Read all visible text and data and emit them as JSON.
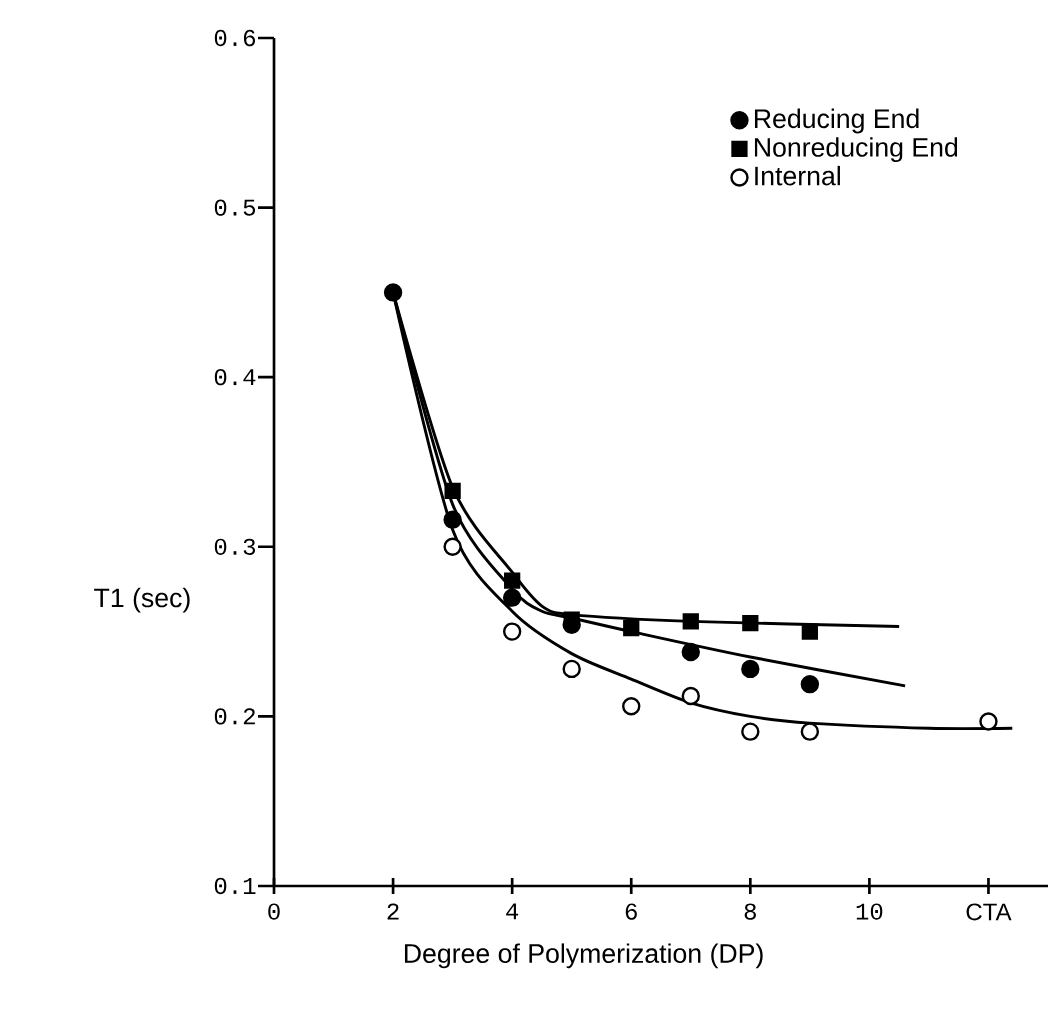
{
  "chart_data": {
    "type": "scatter",
    "xlabel": "Degree of Polymerization (DP)",
    "ylabel": "T1 (sec)",
    "xlim": [
      0,
      13
    ],
    "ylim": [
      0.1,
      0.6
    ],
    "xticks": [
      0,
      2,
      4,
      6,
      8,
      10,
      {
        "value": 12,
        "label": "CTA"
      }
    ],
    "yticks": [
      0.1,
      0.2,
      0.3,
      0.4,
      0.5,
      0.6
    ],
    "grid": false,
    "legend": "top right",
    "series": [
      {
        "name": "Reducing End",
        "marker": "circle",
        "color": "#000000",
        "x": [
          2,
          3,
          4,
          5,
          6,
          7,
          8,
          9
        ],
        "values": [
          0.45,
          0.316,
          0.27,
          0.254,
          null,
          0.238,
          0.228,
          0.219
        ]
      },
      {
        "name": "Nonreducing End",
        "marker": "square",
        "color": "#000000",
        "x": [
          3,
          4,
          5,
          6,
          7,
          8,
          9
        ],
        "values": [
          0.333,
          0.28,
          0.257,
          0.252,
          0.256,
          0.255,
          0.25
        ]
      },
      {
        "name": "Internal",
        "marker": "circle",
        "color": "#ffffff",
        "x": [
          3,
          4,
          5,
          6,
          7,
          8,
          9,
          12
        ],
        "values": [
          0.3,
          0.25,
          0.228,
          0.206,
          0.212,
          0.191,
          0.191,
          0.197
        ]
      },
      {
        "type": "line",
        "marker": "none",
        "color": "#000000",
        "x": [
          2,
          3,
          4,
          4.5,
          5,
          7,
          10.5
        ],
        "values": [
          0.45,
          0.335,
          0.285,
          0.265,
          0.26,
          0.256,
          0.253
        ]
      },
      {
        "type": "line",
        "marker": "none",
        "color": "#000000",
        "x": [
          2,
          3,
          4,
          4.5,
          5,
          6,
          8,
          10.6
        ],
        "values": [
          0.45,
          0.325,
          0.275,
          0.262,
          0.258,
          0.25,
          0.235,
          0.218
        ]
      },
      {
        "type": "line",
        "marker": "none",
        "color": "#000000",
        "x": [
          2,
          3,
          4,
          5,
          6,
          7,
          8,
          9,
          11,
          12.4
        ],
        "values": [
          0.45,
          0.31,
          0.262,
          0.237,
          0.222,
          0.208,
          0.2,
          0.196,
          0.193,
          0.193
        ]
      }
    ]
  }
}
